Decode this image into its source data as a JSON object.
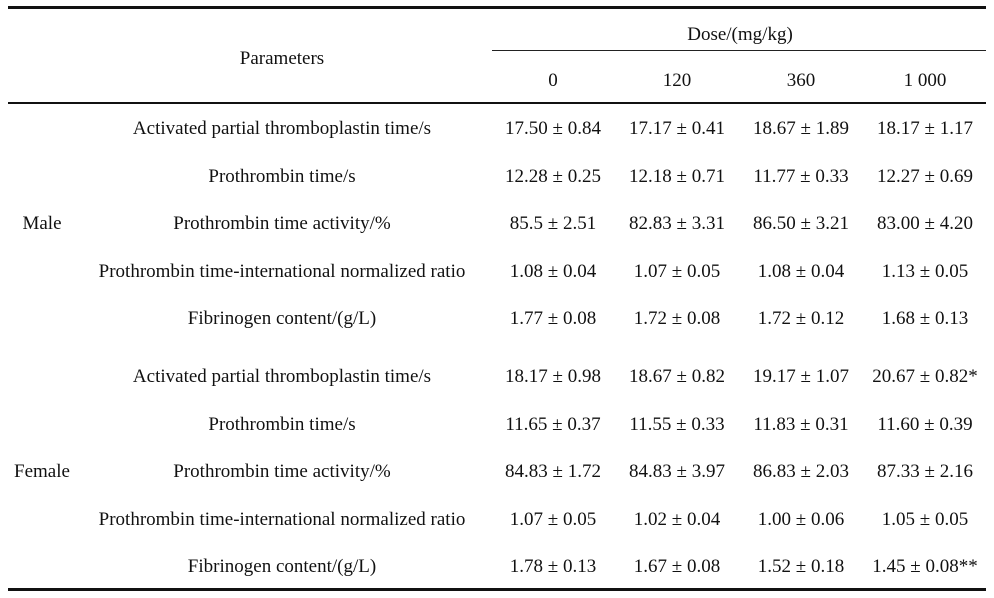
{
  "header": {
    "parameters_label": "Parameters",
    "dose_label": "Dose/(mg/kg)",
    "doses": [
      "0",
      "120",
      "360",
      "1 000"
    ]
  },
  "groups": [
    {
      "name": "Male",
      "rows": [
        {
          "parameter": "Activated partial thromboplastin time/s",
          "values": [
            "17.50 ± 0.84",
            "17.17 ± 0.41",
            "18.67 ± 1.89",
            "18.17 ± 1.17"
          ]
        },
        {
          "parameter": "Prothrombin time/s",
          "values": [
            "12.28 ± 0.25",
            "12.18 ± 0.71",
            "11.77 ± 0.33",
            "12.27 ± 0.69"
          ]
        },
        {
          "parameter": "Prothrombin time activity/%",
          "values": [
            "85.5 ± 2.51",
            "82.83 ± 3.31",
            "86.50 ± 3.21",
            "83.00 ± 4.20"
          ]
        },
        {
          "parameter": "Prothrombin time-international normalized ratio",
          "values": [
            "1.08 ± 0.04",
            "1.07 ± 0.05",
            "1.08 ± 0.04",
            "1.13 ± 0.05"
          ]
        },
        {
          "parameter": "Fibrinogen content/(g/L)",
          "values": [
            "1.77 ± 0.08",
            "1.72 ± 0.08",
            "1.72 ± 0.12",
            "1.68 ± 0.13"
          ]
        }
      ]
    },
    {
      "name": "Female",
      "rows": [
        {
          "parameter": "Activated partial thromboplastin time/s",
          "values": [
            "18.17 ± 0.98",
            "18.67 ± 0.82",
            "19.17 ± 1.07",
            "20.67 ± 0.82*"
          ]
        },
        {
          "parameter": "Prothrombin time/s",
          "values": [
            "11.65 ± 0.37",
            "11.55 ± 0.33",
            "11.83 ± 0.31",
            "11.60 ± 0.39"
          ]
        },
        {
          "parameter": "Prothrombin time activity/%",
          "values": [
            "84.83 ± 1.72",
            "84.83 ± 3.97",
            "86.83 ± 2.03",
            "87.33 ± 2.16"
          ]
        },
        {
          "parameter": "Prothrombin time-international normalized ratio",
          "values": [
            "1.07 ± 0.05",
            "1.02 ± 0.04",
            "1.00 ± 0.06",
            "1.05 ± 0.05"
          ]
        },
        {
          "parameter": "Fibrinogen content/(g/L)",
          "values": [
            "1.78 ± 0.13",
            "1.67 ± 0.08",
            "1.52 ± 0.18",
            "1.45 ± 0.08**"
          ]
        }
      ]
    }
  ]
}
